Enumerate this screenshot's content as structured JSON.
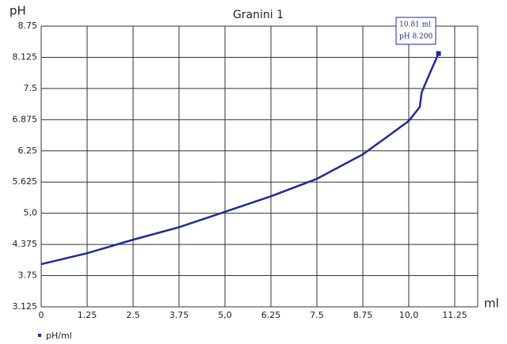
{
  "chart_data": {
    "type": "line",
    "title": "Granini 1",
    "x_label": "ml",
    "y_label": "pH",
    "x": [
      0,
      1.25,
      2.5,
      3.75,
      5.0,
      6.25,
      7.5,
      8.75,
      9.5,
      10.0,
      10.3,
      10.35,
      10.6,
      10.81
    ],
    "series": [
      {
        "name": "pH/ml",
        "color": "#1f2a9c",
        "values": [
          3.98,
          4.2,
          4.47,
          4.72,
          5.03,
          5.34,
          5.69,
          6.18,
          6.58,
          6.85,
          7.13,
          7.42,
          7.85,
          8.2
        ]
      }
    ],
    "xlim": [
      0,
      11.875
    ],
    "xticks": [
      0,
      1.25,
      2.5,
      3.75,
      {
        "value": 5,
        "label": "5,0"
      },
      6.25,
      7.5,
      8.75,
      {
        "value": 10,
        "label": "10,0"
      },
      11.25
    ],
    "ylim": [
      3.125,
      8.75
    ],
    "yticks": [
      3.125,
      3.75,
      4.375,
      {
        "value": 5,
        "label": "5,0"
      },
      5.625,
      6.25,
      6.875,
      7.5,
      8.125,
      8.75
    ],
    "grid": true,
    "annotation": [
      "10.81 ml",
      "pH 8.200"
    ]
  }
}
